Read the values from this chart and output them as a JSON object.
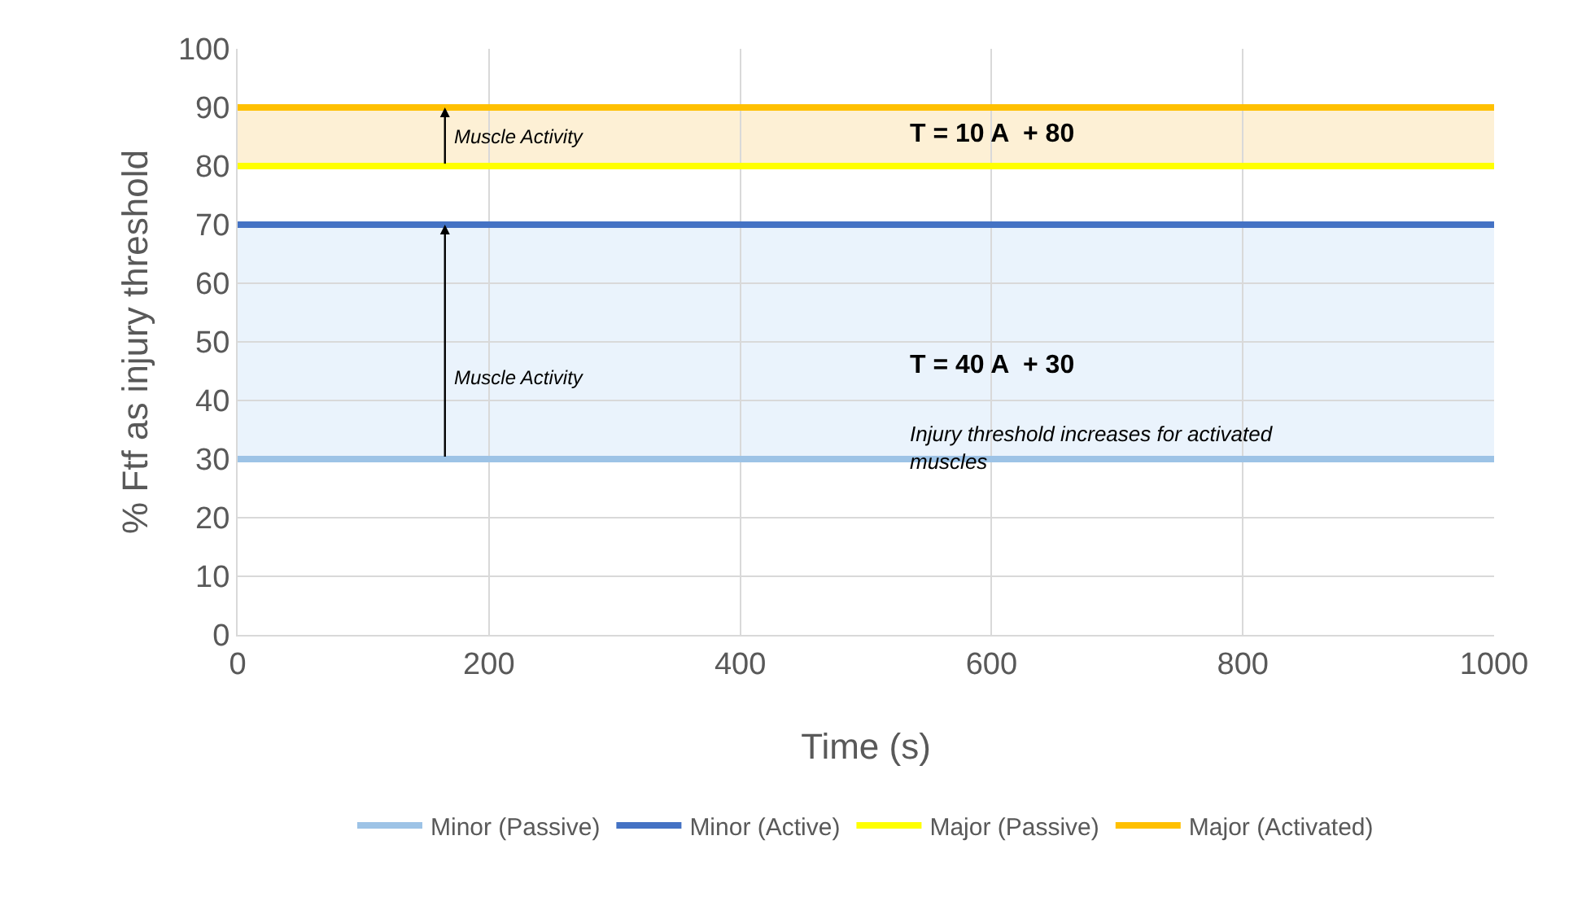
{
  "chart_data": {
    "type": "line",
    "xlabel": "Time (s)",
    "ylabel": "% Ftf as injury threshold",
    "x": [
      0,
      1000
    ],
    "series": [
      {
        "name": "Minor (Passive)",
        "color": "#9dc3e6",
        "values": [
          30,
          30
        ]
      },
      {
        "name": "Minor (Active)",
        "color": "#4472c4",
        "values": [
          70,
          70
        ]
      },
      {
        "name": "Major (Passive)",
        "color": "#ffff00",
        "values": [
          80,
          80
        ]
      },
      {
        "name": "Major (Activated)",
        "color": "#ffc000",
        "values": [
          90,
          90
        ]
      }
    ],
    "bands": [
      {
        "axis": "y",
        "from": 30,
        "to": 70,
        "color": "#eaf3fc"
      },
      {
        "axis": "y",
        "from": 80,
        "to": 90,
        "color": "#fdf0d5"
      }
    ],
    "annotations": [
      "Muscle Activity",
      "Muscle Activity",
      "T = 10 A  + 80",
      "T = 40 A  + 30",
      "Injury threshold increases for activated muscles"
    ],
    "xlim": [
      0,
      1000
    ],
    "xticks": [
      0,
      200,
      400,
      600,
      800,
      1000
    ],
    "ylim": [
      0,
      100
    ],
    "yticks": [
      0,
      10,
      20,
      30,
      40,
      50,
      60,
      70,
      80,
      90,
      100
    ],
    "grid": true,
    "legend": "bottom",
    "marker": "none",
    "line_style": "solid"
  }
}
